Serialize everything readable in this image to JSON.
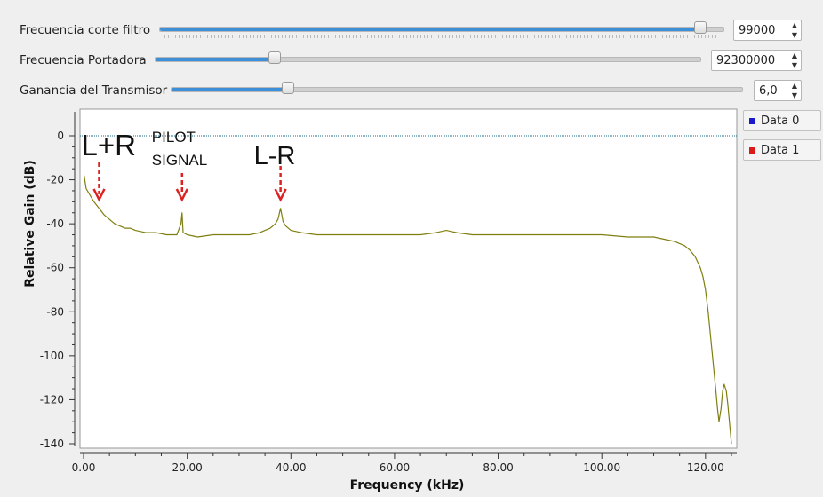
{
  "controls": [
    {
      "label": "Frecuencia corte filtro",
      "value": "99000",
      "level": 0.97
    },
    {
      "label": "Frecuencia Portadora",
      "value": "92300000",
      "level": 0.22
    },
    {
      "label": "Ganancia del Transmisor",
      "value": "6,0",
      "level": 0.2
    }
  ],
  "legend": [
    {
      "label": "Data 0",
      "color": "#1a1acc"
    },
    {
      "label": "Data 1",
      "color": "#dd1a1a"
    }
  ],
  "annotations": [
    {
      "text": "L+R",
      "x": 3,
      "arrow_to": -29
    },
    {
      "text": "PILOT SIGNAL",
      "x": 19,
      "arrow_to": -29
    },
    {
      "text": "L-R",
      "x": 38,
      "arrow_to": -29
    }
  ],
  "colors": {
    "trace": "#7f7f10",
    "reference_line": "#1a6f8f",
    "slider_fill": "#3d8fd8",
    "annotation_arrow": "#dd2222"
  },
  "chart_data": {
    "type": "line",
    "xlabel": "Frequency (kHz)",
    "ylabel": "Relative Gain (dB)",
    "xlim": [
      0,
      125
    ],
    "ylim": [
      -140,
      0
    ],
    "x_ticks": [
      "0.00",
      "20.00",
      "40.00",
      "60.00",
      "80.00",
      "100.00",
      "120.00"
    ],
    "y_ticks": [
      "0",
      "-20",
      "-40",
      "-60",
      "-80",
      "-100",
      "-120",
      "-140"
    ],
    "grid": false,
    "series": [
      {
        "name": "Data 0",
        "x": [
          0,
          125
        ],
        "y": [
          0,
          0
        ]
      },
      {
        "name": "Data 1",
        "x": [
          0.1,
          0.5,
          1,
          2,
          3,
          4,
          5,
          6,
          7,
          8,
          9,
          10,
          12,
          14,
          16,
          18,
          18.8,
          19,
          19.2,
          20,
          22,
          25,
          28,
          30,
          32,
          34,
          35,
          36,
          37,
          37.5,
          38,
          38.5,
          39,
          40,
          42,
          45,
          50,
          55,
          60,
          65,
          68,
          70,
          72,
          75,
          80,
          85,
          90,
          95,
          100,
          105,
          108,
          110,
          112,
          114,
          115,
          116,
          117,
          118,
          119,
          119.5,
          120,
          120.5,
          121,
          121.5,
          122,
          122.3,
          122.6,
          123,
          123.3,
          123.6,
          124,
          124.3,
          124.6,
          125
        ],
        "y": [
          -18,
          -24,
          -26,
          -30,
          -33,
          -36,
          -38,
          -40,
          -41,
          -42,
          -42,
          -43,
          -44,
          -44,
          -45,
          -45,
          -40,
          -35,
          -44,
          -45,
          -46,
          -45,
          -45,
          -45,
          -45,
          -44,
          -43,
          -42,
          -40,
          -38,
          -33,
          -39,
          -41,
          -43,
          -44,
          -45,
          -45,
          -45,
          -45,
          -45,
          -44,
          -43,
          -44,
          -45,
          -45,
          -45,
          -45,
          -45,
          -45,
          -46,
          -46,
          -46,
          -47,
          -48,
          -49,
          -50,
          -52,
          -55,
          -60,
          -64,
          -70,
          -80,
          -92,
          -104,
          -116,
          -124,
          -130,
          -124,
          -116,
          -113,
          -116,
          -122,
          -130,
          -140
        ]
      }
    ]
  }
}
